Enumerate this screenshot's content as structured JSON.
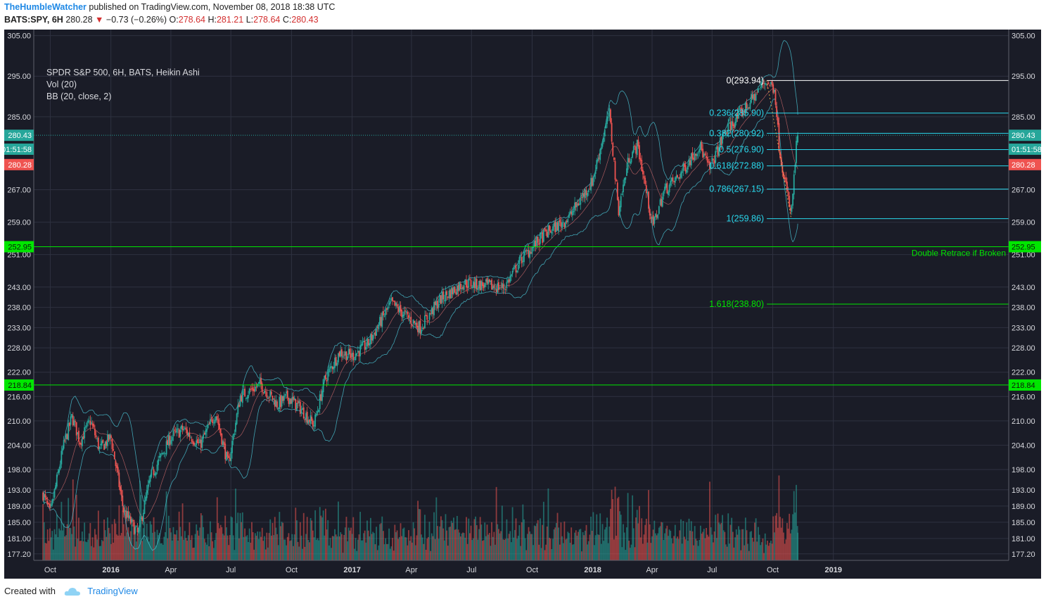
{
  "header": {
    "author": "TheHumbleWatcher",
    "published_text": "published on TradingView.com, November 08, 2018 18:38 UTC",
    "symbol": "BATS:SPY, 6H",
    "last": "280.28",
    "down_arrow": "▼",
    "change": "−0.73 (−0.26%)",
    "o_label": "O:",
    "o_value": "278.64",
    "h_label": "H:",
    "h_value": "281.21",
    "l_label": "L:",
    "l_value": "278.64",
    "c_label": "C:",
    "c_value": "280.43"
  },
  "legend": {
    "title": "SPDR S&P 500, 6H, BATS, Heikin Ashi",
    "vol": "Vol (20)",
    "bb": "BB (20, close, 2)"
  },
  "footer": {
    "created_with": "Created with",
    "brand": "TradingView"
  },
  "colors": {
    "background": "#1a1c27",
    "grid": "#2e3140",
    "up": "#26a69a",
    "down": "#ef5350",
    "bollinger": "#4dd0e1",
    "fib": "#29d8ec",
    "green_level": "#00e600",
    "axis_text": "#d8d9de"
  },
  "chart_data": {
    "type": "candlestick",
    "title": "SPDR S&P 500, 6H, BATS, Heikin Ashi",
    "ylim": [
      175.6,
      306.5
    ],
    "grid": true,
    "y_ticks": [
      "305.00",
      "295.00",
      "285.00",
      "267.00",
      "259.00",
      "251.00",
      "243.00",
      "238.00",
      "233.00",
      "228.00",
      "222.00",
      "216.00",
      "210.00",
      "204.00",
      "198.00",
      "193.00",
      "189.00",
      "185.00",
      "181.00",
      "177.20"
    ],
    "y_tick_values": [
      305,
      295,
      285,
      267,
      259,
      251,
      243,
      238,
      233,
      228,
      222,
      216,
      210,
      204,
      198,
      193,
      189,
      185,
      181,
      177.2
    ],
    "x_ticks": [
      {
        "label": "Oct",
        "date": "2015-10-01",
        "bold": false
      },
      {
        "label": "2016",
        "date": "2016-01-01",
        "bold": true
      },
      {
        "label": "Apr",
        "date": "2016-04-01",
        "bold": false
      },
      {
        "label": "Jul",
        "date": "2016-07-01",
        "bold": false
      },
      {
        "label": "Oct",
        "date": "2016-10-01",
        "bold": false
      },
      {
        "label": "2017",
        "date": "2017-01-01",
        "bold": true
      },
      {
        "label": "Apr",
        "date": "2017-04-01",
        "bold": false
      },
      {
        "label": "Jul",
        "date": "2017-07-01",
        "bold": false
      },
      {
        "label": "Oct",
        "date": "2017-10-01",
        "bold": false
      },
      {
        "label": "2018",
        "date": "2018-01-01",
        "bold": true
      },
      {
        "label": "Apr",
        "date": "2018-04-01",
        "bold": false
      },
      {
        "label": "Jul",
        "date": "2018-07-01",
        "bold": false
      },
      {
        "label": "Oct",
        "date": "2018-10-01",
        "bold": false
      },
      {
        "label": "2019",
        "date": "2019-01-01",
        "bold": true
      }
    ],
    "x_range": [
      "2015-09-06",
      "2019-09-24"
    ],
    "price_path": [
      [
        "2015-09-20",
        192
      ],
      [
        "2015-10-01",
        187
      ],
      [
        "2015-10-20",
        203
      ],
      [
        "2015-11-03",
        211
      ],
      [
        "2015-11-15",
        205
      ],
      [
        "2015-12-01",
        210
      ],
      [
        "2015-12-15",
        203
      ],
      [
        "2016-01-01",
        206
      ],
      [
        "2016-01-20",
        188
      ],
      [
        "2016-02-11",
        182
      ],
      [
        "2016-03-01",
        196
      ],
      [
        "2016-04-01",
        206
      ],
      [
        "2016-04-20",
        208
      ],
      [
        "2016-05-15",
        204
      ],
      [
        "2016-06-08",
        212
      ],
      [
        "2016-06-27",
        199
      ],
      [
        "2016-07-15",
        216
      ],
      [
        "2016-08-15",
        219
      ],
      [
        "2016-09-10",
        214
      ],
      [
        "2016-09-25",
        216
      ],
      [
        "2016-10-15",
        213
      ],
      [
        "2016-11-04",
        209
      ],
      [
        "2016-11-20",
        220
      ],
      [
        "2016-12-13",
        227
      ],
      [
        "2017-01-01",
        226
      ],
      [
        "2017-01-25",
        229
      ],
      [
        "2017-03-01",
        239
      ],
      [
        "2017-04-14",
        233
      ],
      [
        "2017-05-15",
        240
      ],
      [
        "2017-06-19",
        244
      ],
      [
        "2017-08-10",
        243
      ],
      [
        "2017-08-20",
        243
      ],
      [
        "2017-09-15",
        250
      ],
      [
        "2017-10-20",
        256
      ],
      [
        "2017-11-25",
        260
      ],
      [
        "2017-12-31",
        269
      ],
      [
        "2018-01-26",
        286
      ],
      [
        "2018-02-09",
        262
      ],
      [
        "2018-02-25",
        275
      ],
      [
        "2018-03-10",
        278
      ],
      [
        "2018-04-02",
        258
      ],
      [
        "2018-04-20",
        267
      ],
      [
        "2018-05-10",
        270
      ],
      [
        "2018-06-12",
        278
      ],
      [
        "2018-06-27",
        272
      ],
      [
        "2018-07-20",
        281
      ],
      [
        "2018-08-25",
        288
      ],
      [
        "2018-09-20",
        293.9
      ],
      [
        "2018-10-04",
        292
      ],
      [
        "2018-10-11",
        277
      ],
      [
        "2018-10-29",
        260.5
      ],
      [
        "2018-11-07",
        280.4
      ]
    ],
    "last_candle": {
      "date": "2018-11-08",
      "open": 278.64,
      "high": 281.21,
      "low": 278.64,
      "close": 280.43
    },
    "horizontal_lines": [
      {
        "name": "double-retrace-level",
        "value": 252.95,
        "label": "252.95",
        "color": "#00e600",
        "note": "Double Retrace if Broken"
      },
      {
        "name": "support-level",
        "value": 218.84,
        "label": "218.84",
        "color": "#00e600"
      },
      {
        "name": "last-close",
        "value": 280.43,
        "label": "280.43",
        "color": "#26a69a",
        "dotted": true
      }
    ],
    "axis_badges": [
      {
        "label": "280.43",
        "value": 280.43,
        "color": "#26a69a"
      },
      {
        "label": "01:51:58",
        "value": 277.0,
        "color": "#26a69a"
      },
      {
        "label": "280.28",
        "value": 273.2,
        "color": "#ef5350"
      },
      {
        "label": "252.95",
        "value": 252.95,
        "color": "#00e600"
      },
      {
        "label": "218.84",
        "value": 218.84,
        "color": "#00e600"
      }
    ],
    "fibonacci": {
      "start_date": "2018-09-22",
      "levels": [
        {
          "ratio": "0",
          "value": 293.94,
          "label": "0(293.94)",
          "color": "#ffffff"
        },
        {
          "ratio": "0.236",
          "value": 285.9,
          "label": "0.236(285.90)",
          "color": "#29d8ec"
        },
        {
          "ratio": "0.382",
          "value": 280.92,
          "label": "0.382(280.92)",
          "color": "#29d8ec"
        },
        {
          "ratio": "0.5",
          "value": 276.9,
          "label": "0.5(276.90)",
          "color": "#29d8ec"
        },
        {
          "ratio": "0.618",
          "value": 272.88,
          "label": "0.618(272.88)",
          "color": "#29d8ec"
        },
        {
          "ratio": "0.786",
          "value": 267.15,
          "label": "0.786(267.15)",
          "color": "#29d8ec"
        },
        {
          "ratio": "1",
          "value": 259.86,
          "label": "1(259.86)",
          "color": "#29d8ec"
        },
        {
          "ratio": "1.618",
          "value": 238.8,
          "label": "1.618(238.80)",
          "color": "#00e600"
        }
      ]
    },
    "series": [
      {
        "name": "Vol (20)",
        "type": "volume"
      },
      {
        "name": "BB (20, close, 2)",
        "type": "bands"
      }
    ]
  }
}
